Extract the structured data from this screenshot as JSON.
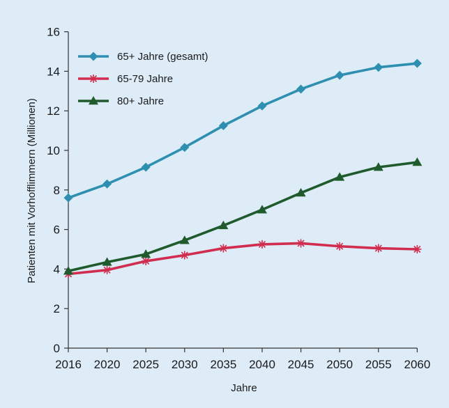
{
  "chart_data": {
    "type": "line",
    "xlabel": "Jahre",
    "ylabel": "Patienten mit Vorhofflimmern (Millionen)",
    "ylim": [
      0,
      16
    ],
    "y_ticks": [
      0,
      2,
      4,
      6,
      8,
      10,
      12,
      14,
      16
    ],
    "categories": [
      "2016",
      "2020",
      "2025",
      "2030",
      "2035",
      "2040",
      "2045",
      "2050",
      "2055",
      "2060"
    ],
    "grid": false,
    "legend_position": "top-left",
    "series": [
      {
        "name": "65+ Jahre (gesamt)",
        "color": "#2e8fb0",
        "marker": "diamond",
        "values": [
          7.6,
          8.3,
          9.15,
          10.15,
          11.25,
          12.25,
          13.1,
          13.8,
          14.2,
          14.4
        ]
      },
      {
        "name": "65-79 Jahre",
        "color": "#d12d4e",
        "marker": "asterisk",
        "values": [
          3.75,
          3.95,
          4.4,
          4.7,
          5.05,
          5.25,
          5.3,
          5.15,
          5.05,
          5.0
        ]
      },
      {
        "name": "80+ Jahre",
        "color": "#1f5b2c",
        "marker": "triangle",
        "values": [
          3.9,
          4.35,
          4.75,
          5.45,
          6.2,
          7.0,
          7.85,
          8.65,
          9.15,
          9.4
        ]
      }
    ]
  }
}
